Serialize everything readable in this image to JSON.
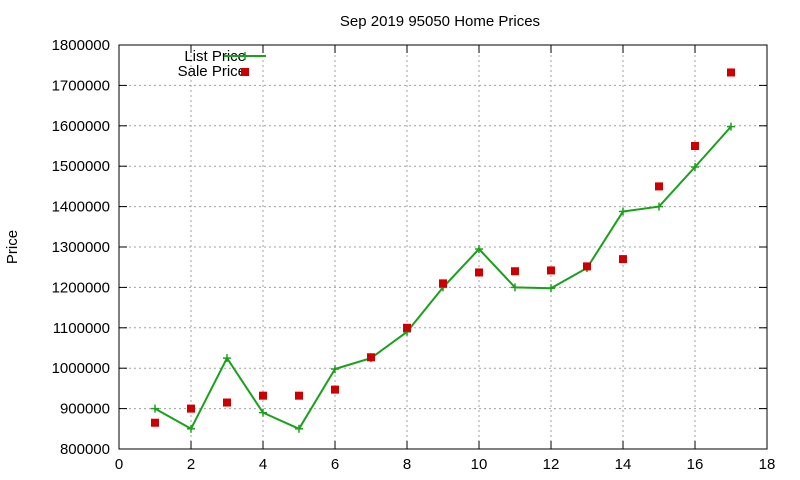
{
  "chart_data": {
    "type": "line",
    "title": "Sep 2019 95050 Home Prices",
    "xlabel": "",
    "ylabel": "Price",
    "xlim": [
      0,
      18
    ],
    "ylim": [
      800000,
      1800000
    ],
    "xticks": [
      "0",
      "2",
      "4",
      "6",
      "8",
      "10",
      "12",
      "14",
      "16",
      "18"
    ],
    "yticks": [
      "800000",
      "900000",
      "1000000",
      "1100000",
      "1200000",
      "1300000",
      "1400000",
      "1500000",
      "1600000",
      "1700000",
      "1800000"
    ],
    "grid": true,
    "legend_position": "top-left",
    "x": [
      1,
      2,
      3,
      4,
      5,
      6,
      7,
      8,
      9,
      10,
      11,
      12,
      13,
      14,
      15,
      16,
      17
    ],
    "series": [
      {
        "name": "List Price",
        "style": "line+cross",
        "color": "#1aa01a",
        "values": [
          900000,
          850000,
          1025000,
          890000,
          850000,
          998000,
          1025000,
          1090000,
          1200000,
          1295000,
          1200000,
          1198000,
          1248000,
          1388000,
          1400000,
          1498000,
          1598000
        ]
      },
      {
        "name": "Sale Price",
        "style": "square-markers",
        "color": "#cc0000",
        "values": [
          865000,
          900000,
          915000,
          932000,
          932000,
          947000,
          1027000,
          1100000,
          1210000,
          1237000,
          1240000,
          1242000,
          1252000,
          1270000,
          1450000,
          1550000,
          1732000
        ]
      }
    ]
  }
}
